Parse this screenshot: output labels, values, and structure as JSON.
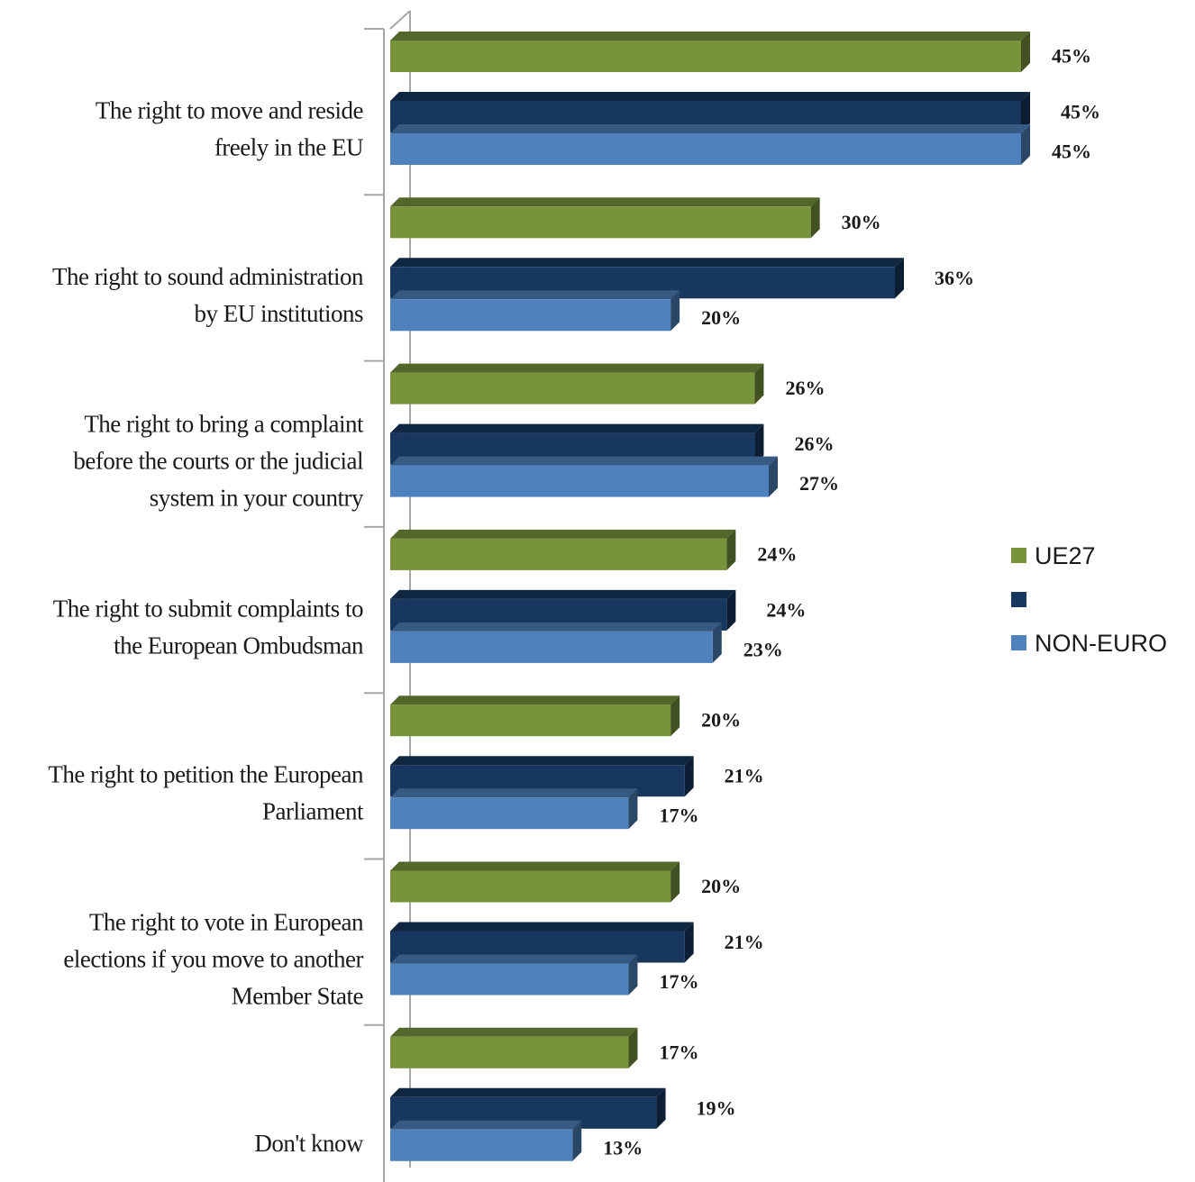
{
  "chart_data": {
    "type": "bar",
    "orientation": "horizontal",
    "categories": [
      [
        "The right to move and reside",
        "freely in the EU"
      ],
      [
        "The right to sound administration",
        "by EU institutions"
      ],
      [
        "The right to bring a complaint",
        "before the courts or the judicial",
        "system in your country"
      ],
      [
        "The right to submit complaints to",
        "the European Ombudsman"
      ],
      [
        "The right to petition the European",
        "Parliament"
      ],
      [
        "The right to vote in European",
        "elections if you move to another",
        "Member State"
      ],
      [
        "Don't know"
      ]
    ],
    "series": [
      {
        "name": "UE27",
        "color": "#77933c",
        "values": [
          45,
          30,
          26,
          24,
          20,
          20,
          17
        ]
      },
      {
        "name": "",
        "color": "#17375e",
        "values": [
          45,
          36,
          26,
          24,
          21,
          21,
          19
        ]
      },
      {
        "name": "NON-EURO",
        "color": "#4f81bd",
        "values": [
          45,
          20,
          27,
          23,
          17,
          17,
          13
        ]
      }
    ],
    "value_suffix": "%",
    "xlim": [
      0,
      45
    ],
    "legend_position": "right",
    "bar_style": "3d",
    "grid": false
  }
}
